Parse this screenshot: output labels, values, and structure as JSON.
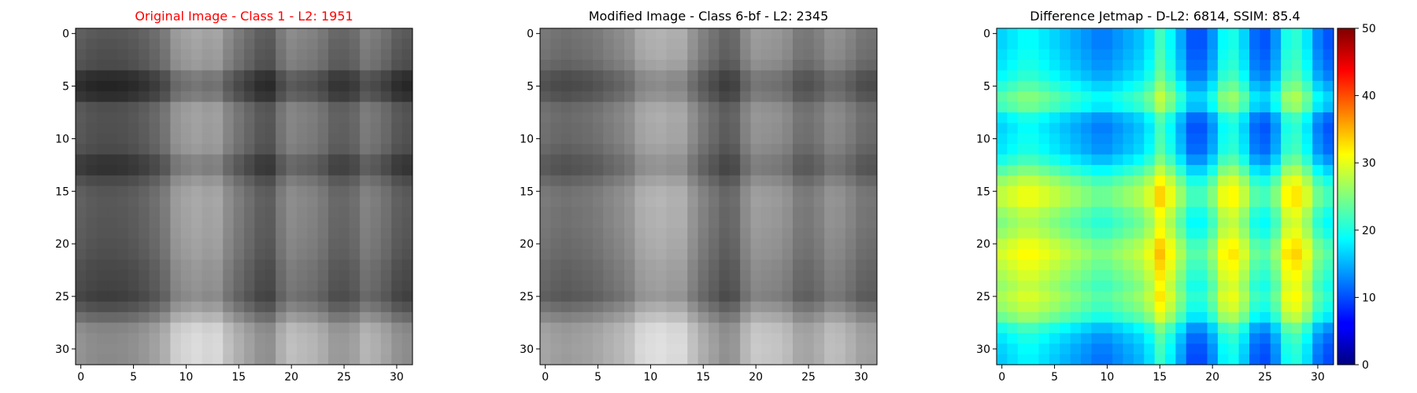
{
  "chart_data": [
    {
      "type": "heatmap",
      "title": "Original Image - Class 1 - L2: 1951",
      "title_color": "#ff0000",
      "colormap": "gray",
      "xticks": [
        0,
        5,
        10,
        15,
        20,
        25,
        30
      ],
      "yticks": [
        0,
        5,
        10,
        15,
        20,
        25,
        30
      ],
      "xlim": [
        0,
        31
      ],
      "ylim": [
        0,
        31
      ],
      "grid": false,
      "row_scale": [
        0.56,
        0.53,
        0.5,
        0.47,
        0.26,
        0.2,
        0.27,
        0.5,
        0.52,
        0.51,
        0.5,
        0.47,
        0.32,
        0.3,
        0.46,
        0.55,
        0.57,
        0.56,
        0.55,
        0.54,
        0.52,
        0.5,
        0.46,
        0.44,
        0.42,
        0.38,
        0.5,
        0.68,
        0.88,
        0.92,
        0.93,
        0.92
      ],
      "col_scale": [
        0.3,
        0.26,
        0.24,
        0.24,
        0.25,
        0.28,
        0.33,
        0.4,
        0.5,
        0.72,
        0.78,
        0.82,
        0.78,
        0.8,
        0.62,
        0.5,
        0.4,
        0.3,
        0.28,
        0.5,
        0.62,
        0.58,
        0.55,
        0.48,
        0.36,
        0.35,
        0.4,
        0.55,
        0.5,
        0.42,
        0.3,
        0.26
      ]
    },
    {
      "type": "heatmap",
      "title": "Modified Image - Class 6-bf - L2: 2345",
      "title_color": "#000000",
      "colormap": "gray",
      "xticks": [
        0,
        5,
        10,
        15,
        20,
        25,
        30
      ],
      "yticks": [
        0,
        5,
        10,
        15,
        20,
        25,
        30
      ],
      "xlim": [
        0,
        31
      ],
      "ylim": [
        0,
        31
      ],
      "grid": false,
      "row_scale": [
        0.62,
        0.6,
        0.58,
        0.52,
        0.38,
        0.34,
        0.4,
        0.55,
        0.58,
        0.56,
        0.55,
        0.5,
        0.42,
        0.4,
        0.52,
        0.62,
        0.64,
        0.62,
        0.62,
        0.6,
        0.58,
        0.56,
        0.52,
        0.5,
        0.48,
        0.44,
        0.58,
        0.74,
        0.9,
        0.93,
        0.94,
        0.93
      ],
      "col_scale": [
        0.42,
        0.38,
        0.36,
        0.38,
        0.4,
        0.44,
        0.5,
        0.55,
        0.62,
        0.78,
        0.82,
        0.84,
        0.8,
        0.8,
        0.62,
        0.48,
        0.38,
        0.28,
        0.32,
        0.55,
        0.68,
        0.66,
        0.64,
        0.58,
        0.44,
        0.42,
        0.48,
        0.6,
        0.58,
        0.5,
        0.4,
        0.38
      ]
    },
    {
      "type": "heatmap",
      "title": "Difference Jetmap - D-L2: 6814, SSIM: 85.4",
      "title_color": "#000000",
      "colormap": "jet",
      "xticks": [
        0,
        5,
        10,
        15,
        20,
        25,
        30
      ],
      "yticks": [
        0,
        5,
        10,
        15,
        20,
        25,
        30
      ],
      "xlim": [
        0,
        31
      ],
      "ylim": [
        0,
        31
      ],
      "grid": false,
      "colorbar": {
        "range": [
          0,
          50
        ],
        "ticks": [
          0,
          10,
          20,
          30,
          40,
          50
        ]
      },
      "row_scale": [
        8,
        8,
        9,
        10,
        12,
        16,
        20,
        18,
        10,
        8,
        9,
        10,
        14,
        20,
        26,
        30,
        30,
        26,
        24,
        26,
        30,
        32,
        30,
        28,
        26,
        28,
        26,
        22,
        14,
        10,
        8,
        7
      ],
      "col_scale": [
        24,
        26,
        28,
        28,
        26,
        24,
        22,
        20,
        18,
        16,
        16,
        18,
        20,
        22,
        26,
        34,
        28,
        20,
        12,
        12,
        18,
        28,
        30,
        24,
        14,
        12,
        18,
        30,
        32,
        26,
        16,
        12
      ]
    }
  ]
}
